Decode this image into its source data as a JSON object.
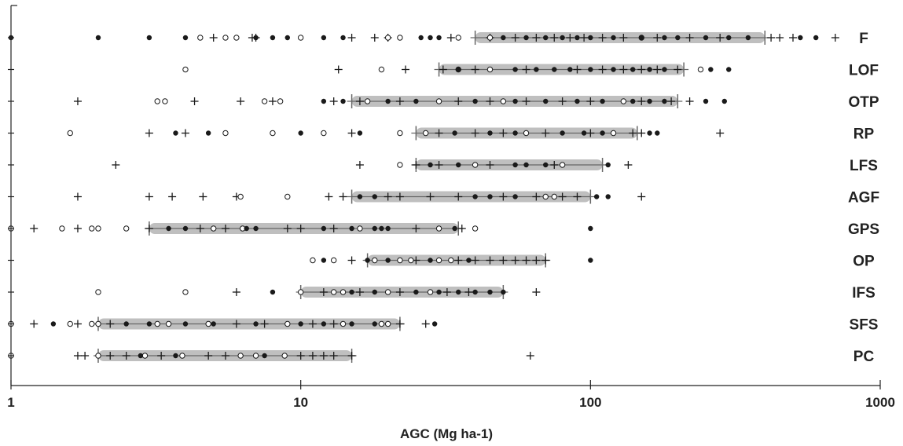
{
  "chart_data": {
    "type": "scatter",
    "xlabel": "AGC (Mg ha-1)",
    "xscale": "log",
    "xlim": [
      1,
      1000
    ],
    "xticks": [
      1,
      10,
      100,
      1000
    ],
    "xtick_labels": [
      "1",
      "10",
      "100",
      "1000"
    ],
    "grid": false,
    "legend": "none",
    "colors": {
      "bar": "#b4b4b4",
      "filled_point": "#1a1a1a",
      "open_point": "#ffffff",
      "cross": "#1a1a1a"
    },
    "categories": [
      "F",
      "LOF",
      "OTP",
      "RP",
      "LFS",
      "AGF",
      "GPS",
      "OP",
      "IFS",
      "SFS",
      "PC"
    ],
    "ranges": [
      {
        "category": "F",
        "low": 40,
        "high": 400
      },
      {
        "category": "LOF",
        "low": 30,
        "high": 210
      },
      {
        "category": "OTP",
        "low": 15,
        "high": 200
      },
      {
        "category": "RP",
        "low": 25,
        "high": 145
      },
      {
        "category": "LFS",
        "low": 25,
        "high": 110
      },
      {
        "category": "AGF",
        "low": 15,
        "high": 100
      },
      {
        "category": "GPS",
        "low": 3,
        "high": 35
      },
      {
        "category": "OP",
        "low": 17,
        "high": 70
      },
      {
        "category": "IFS",
        "low": 10,
        "high": 50
      },
      {
        "category": "SFS",
        "low": 2,
        "high": 22
      },
      {
        "category": "PC",
        "low": 2,
        "high": 15
      }
    ],
    "series": [
      {
        "category": "F",
        "filled": [
          1,
          2,
          3,
          4,
          7,
          8,
          9,
          12,
          14,
          26,
          28,
          30,
          50,
          60,
          70,
          80,
          90,
          100,
          120,
          150,
          180,
          200,
          250,
          300,
          350,
          530,
          600
        ],
        "open": [
          4.5,
          5.5,
          6,
          10,
          20,
          22,
          35,
          45,
          150
        ],
        "cross": [
          5,
          6.8,
          7,
          15,
          18,
          20,
          33,
          45,
          55,
          65,
          75,
          85,
          95,
          110,
          130,
          170,
          220,
          280,
          420,
          450,
          500,
          700
        ]
      },
      {
        "category": "LOF",
        "filled": [
          35,
          55,
          65,
          75,
          85,
          100,
          120,
          140,
          160,
          180,
          260,
          300
        ],
        "open": [
          4,
          19,
          35,
          45,
          240
        ],
        "cross": [
          13.5,
          23,
          31,
          40,
          60,
          90,
          110,
          130,
          150,
          170,
          200
        ]
      },
      {
        "category": "OTP",
        "filled": [
          12,
          14,
          20,
          25,
          40,
          55,
          70,
          90,
          110,
          140,
          160,
          180,
          250,
          290
        ],
        "open": [
          3.2,
          3.4,
          7.5,
          8.5,
          17,
          30,
          50,
          130
        ],
        "cross": [
          1.7,
          4.3,
          6.2,
          8,
          13,
          16,
          22,
          35,
          45,
          60,
          80,
          100,
          150,
          190,
          220
        ]
      },
      {
        "category": "RP",
        "filled": [
          3.7,
          4.8,
          10,
          16,
          34,
          45,
          55,
          80,
          95,
          110,
          160,
          170
        ],
        "open": [
          1.6,
          5.5,
          8,
          12,
          22,
          27,
          60,
          120
        ],
        "cross": [
          3,
          4,
          15,
          30,
          40,
          50,
          70,
          100,
          140,
          150,
          280
        ]
      },
      {
        "category": "LFS",
        "filled": [
          28,
          35,
          55,
          60,
          70,
          115
        ],
        "open": [
          22,
          40,
          80
        ],
        "cross": [
          2.3,
          16,
          25,
          30,
          45,
          75,
          135
        ]
      },
      {
        "category": "AGF",
        "filled": [
          16,
          18,
          40,
          45,
          55,
          105,
          115
        ],
        "open": [
          6.2,
          9,
          70,
          75
        ],
        "cross": [
          1.7,
          3,
          3.6,
          4.6,
          6,
          12.5,
          14,
          20,
          22,
          28,
          35,
          50,
          65,
          80,
          90,
          150
        ]
      },
      {
        "category": "GPS",
        "filled": [
          3.5,
          4,
          6.5,
          7,
          12,
          15,
          18,
          19,
          20,
          34,
          100
        ],
        "open": [
          1,
          1.5,
          1.9,
          2,
          2.5,
          5,
          6.3,
          16,
          30,
          40
        ],
        "cross": [
          1.2,
          1.7,
          3,
          4.5,
          5.5,
          9,
          10,
          13,
          25,
          36
        ]
      },
      {
        "category": "OP",
        "filled": [
          12,
          17,
          20,
          28,
          38,
          100
        ],
        "open": [
          11,
          13,
          18,
          22,
          24,
          30,
          33
        ],
        "cross": [
          15,
          25,
          35,
          40,
          45,
          50,
          55,
          60,
          65,
          70
        ]
      },
      {
        "category": "IFS",
        "filled": [
          8,
          15,
          18,
          25,
          30,
          35,
          40,
          45,
          50
        ],
        "open": [
          2,
          4,
          10,
          13,
          14,
          20,
          28
        ],
        "cross": [
          6,
          12,
          16,
          22,
          32,
          38,
          65
        ]
      },
      {
        "category": "SFS",
        "filled": [
          1.4,
          2.5,
          3,
          4,
          5,
          7,
          10,
          12,
          15,
          18,
          29
        ],
        "open": [
          1,
          1.6,
          1.9,
          2,
          3.2,
          3.5,
          4.8,
          9,
          14,
          19,
          20
        ],
        "cross": [
          1.2,
          1.7,
          2.2,
          6,
          7.5,
          11,
          13,
          22,
          27
        ]
      },
      {
        "category": "PC",
        "filled": [
          2.8,
          3.7,
          7.5
        ],
        "open": [
          1,
          2,
          2.9,
          3.9,
          6.2,
          7,
          8.8
        ],
        "cross": [
          1.7,
          1.8,
          2.2,
          2.5,
          3.3,
          4.8,
          5.5,
          10,
          11,
          12,
          13,
          15,
          62
        ]
      }
    ]
  }
}
